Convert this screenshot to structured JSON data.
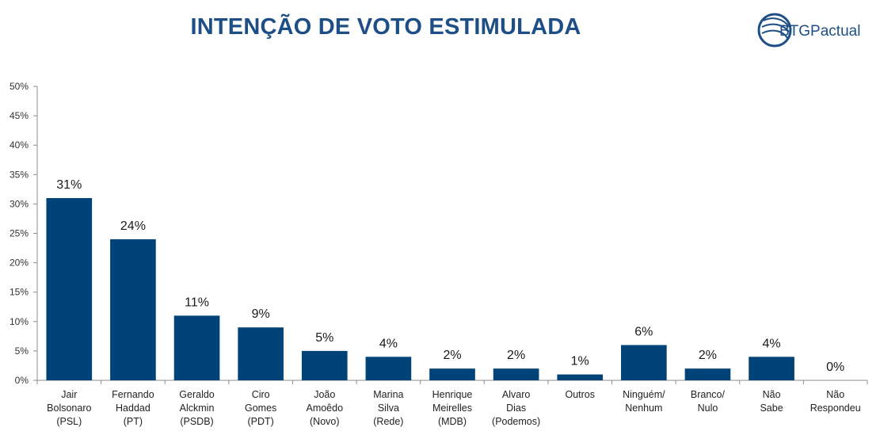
{
  "header": {
    "title": "INTENÇÃO DE VOTO ESTIMULADA",
    "logo_text": "BTGPactual"
  },
  "colors": {
    "bar": "#004379",
    "title": "#1d4f86",
    "logo": "#1d4f86"
  },
  "chart_data": {
    "type": "bar",
    "title": "INTENÇÃO DE VOTO ESTIMULADA",
    "xlabel": "",
    "ylabel": "",
    "ylim": [
      0,
      50
    ],
    "yticks": [
      "0%",
      "5%",
      "10%",
      "15%",
      "20%",
      "25%",
      "30%",
      "35%",
      "40%",
      "45%",
      "50%"
    ],
    "grid": false,
    "categories": [
      [
        "Jair",
        "Bolsonaro",
        "(PSL)"
      ],
      [
        "Fernando",
        "Haddad",
        "(PT)"
      ],
      [
        "Geraldo",
        "Alckmin",
        "(PSDB)"
      ],
      [
        "Ciro",
        "Gomes",
        "(PDT)"
      ],
      [
        "João",
        "Amoêdo",
        "(Novo)"
      ],
      [
        "Marina",
        "Silva",
        "(Rede)"
      ],
      [
        "Henrique",
        "Meirelles",
        "(MDB)"
      ],
      [
        "Alvaro",
        "Dias",
        "(Podemos)"
      ],
      [
        "Outros"
      ],
      [
        "Ninguém/",
        "Nenhum"
      ],
      [
        "Branco/",
        "Nulo"
      ],
      [
        "Não",
        "Sabe"
      ],
      [
        "Não",
        "Respondeu"
      ]
    ],
    "values": [
      31,
      24,
      11,
      9,
      5,
      4,
      2,
      2,
      1,
      6,
      2,
      4,
      0
    ],
    "labels": [
      "31%",
      "24%",
      "11%",
      "9%",
      "5%",
      "4%",
      "2%",
      "2%",
      "1%",
      "6%",
      "2%",
      "4%",
      "0%"
    ]
  }
}
